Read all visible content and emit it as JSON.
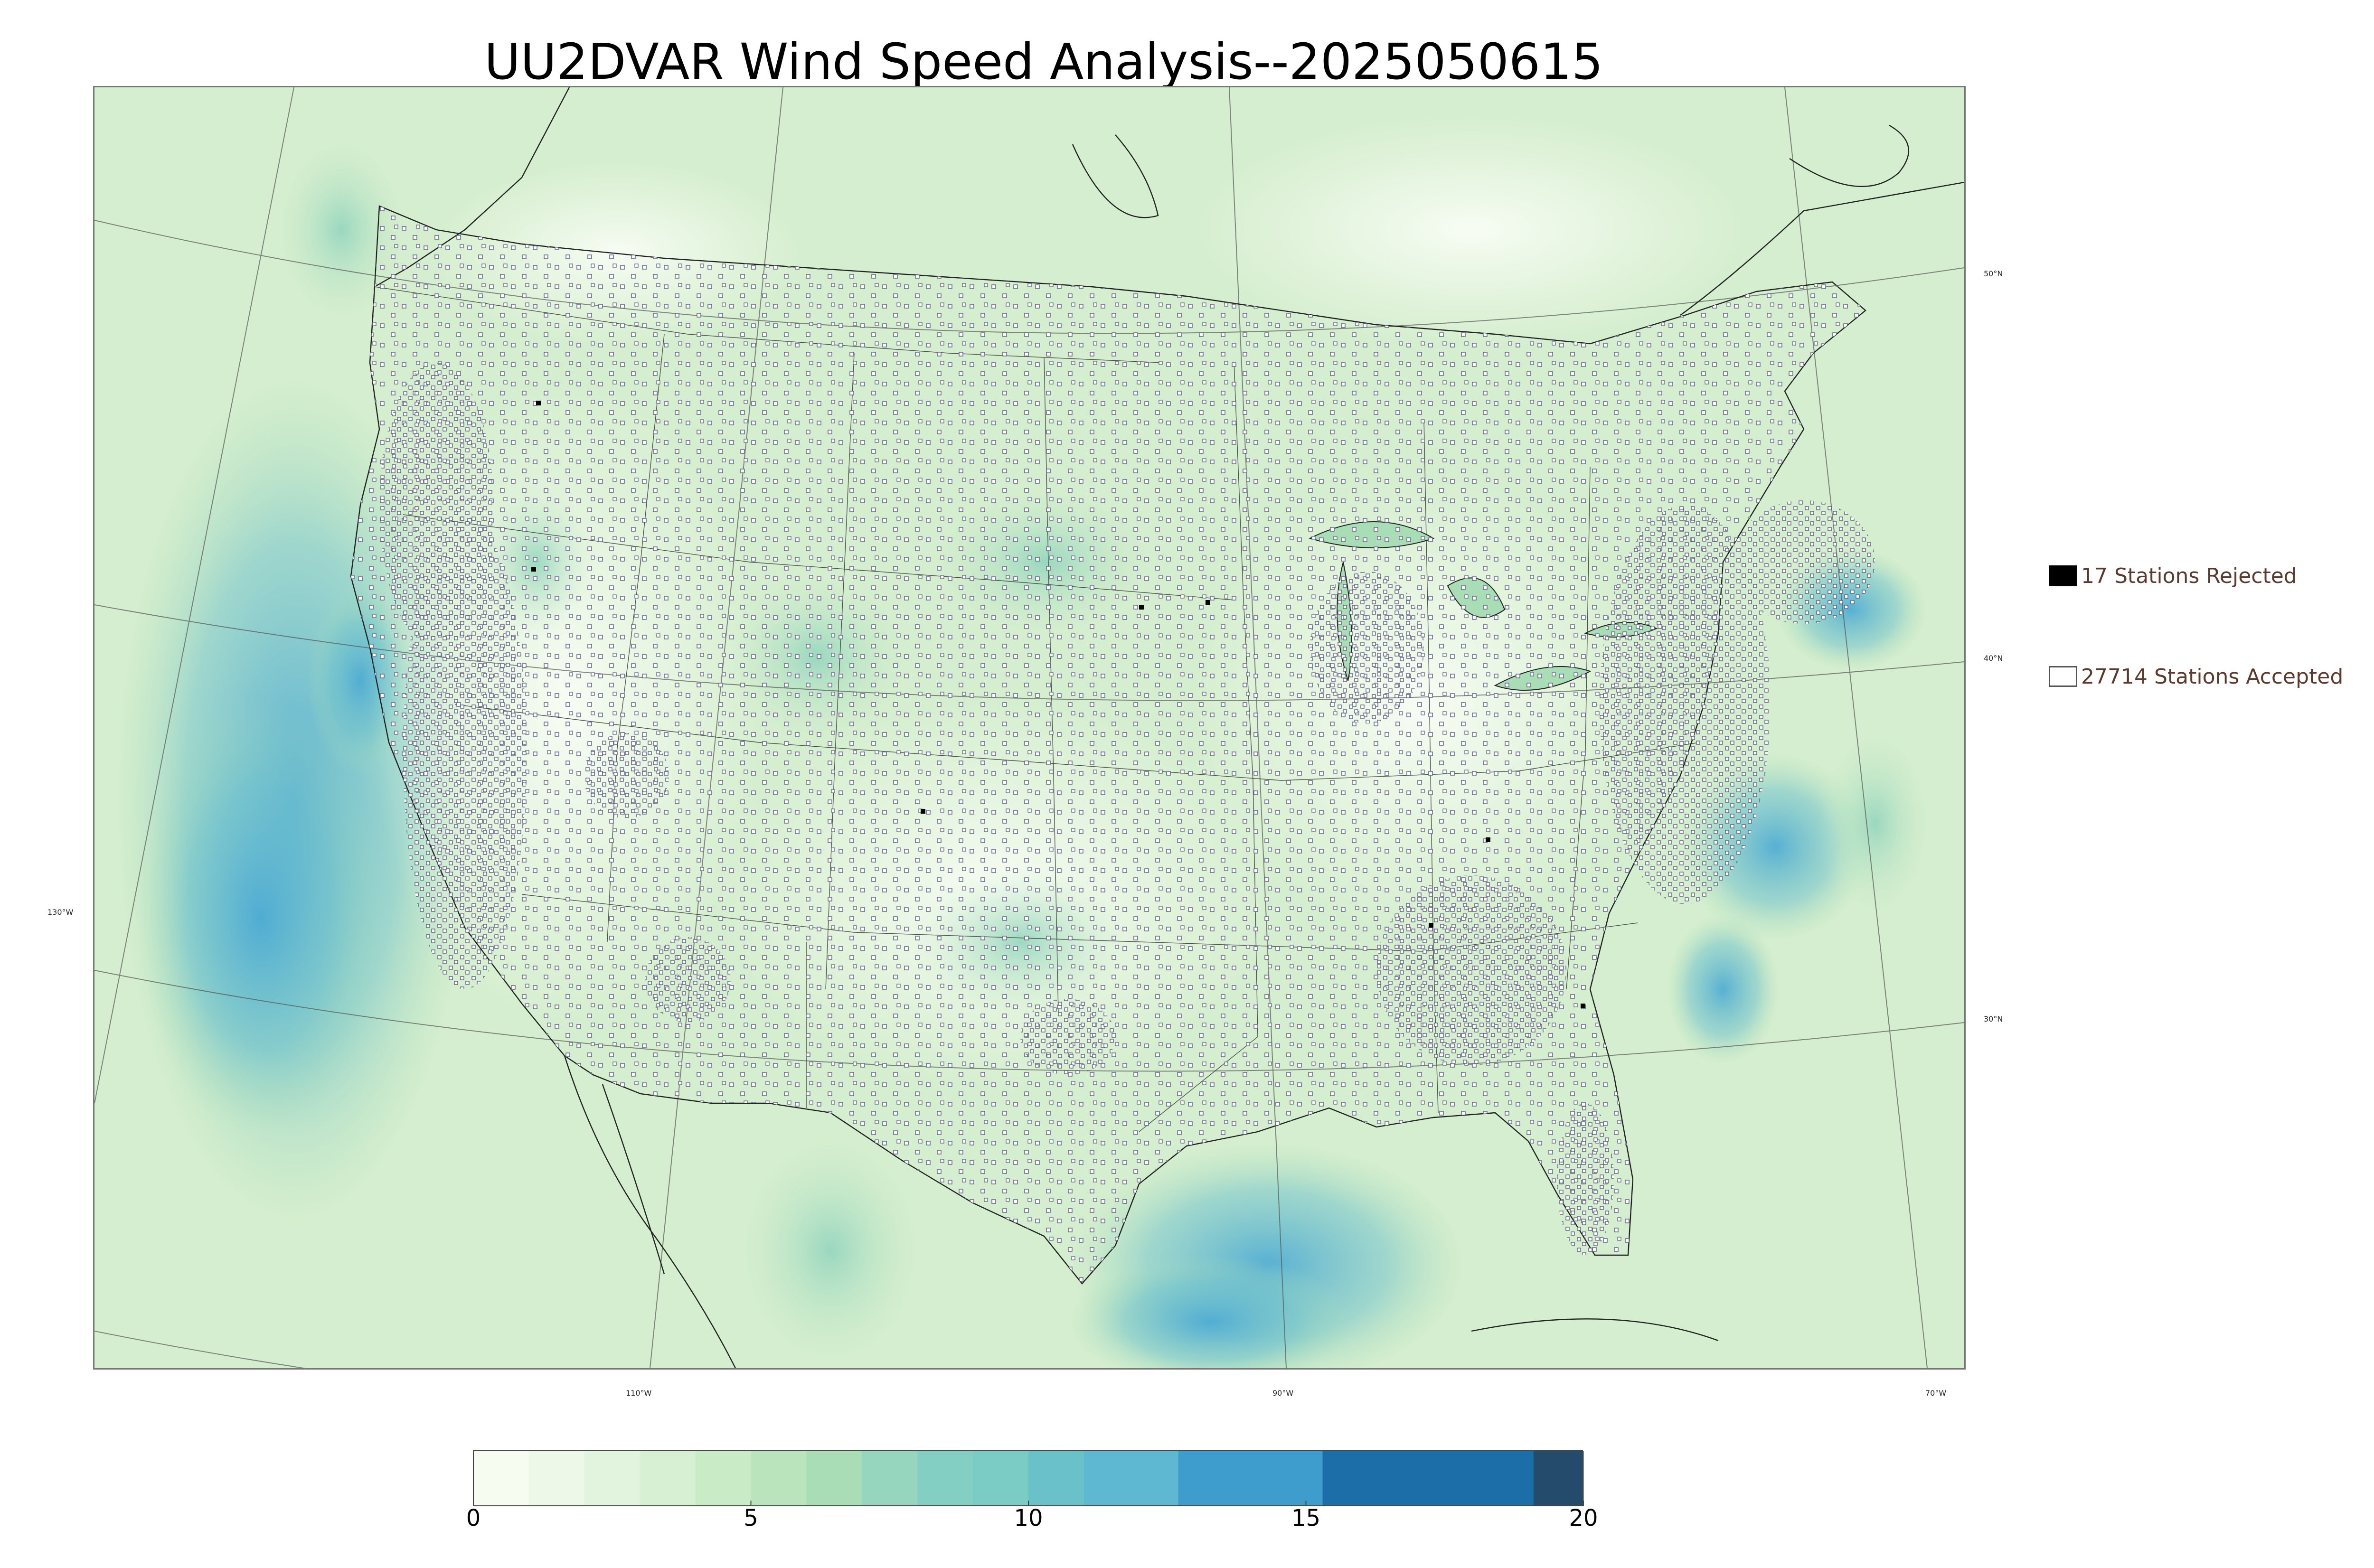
{
  "title": "UU2DVAR Wind Speed Analysis--2025050615",
  "map": {
    "latitude_labels": [
      "50°N",
      "40°N",
      "30°N"
    ],
    "longitude_labels": [
      "130°W",
      "110°W",
      "90°W",
      "70°W"
    ],
    "background_colors": {
      "water_calm": "#e6f5e0",
      "land": "#f2faee",
      "fast_wind": "#4eb3d3"
    }
  },
  "legend": {
    "rejected": {
      "count": 17,
      "label": "17 Stations Rejected",
      "color": "#000000"
    },
    "accepted": {
      "count": 27714,
      "label": "27714 Stations Accepted",
      "color": "#ffffff"
    }
  },
  "colorbar": {
    "min": 0,
    "max": 20,
    "ticks": [
      "0",
      "5",
      "10",
      "15",
      "20"
    ],
    "stops": [
      {
        "from": 0,
        "to": 1,
        "color": "#f7fcf0"
      },
      {
        "from": 1,
        "to": 2,
        "color": "#eef8e8"
      },
      {
        "from": 2,
        "to": 3,
        "color": "#e3f4de"
      },
      {
        "from": 3,
        "to": 4,
        "color": "#d7efd2"
      },
      {
        "from": 4,
        "to": 5,
        "color": "#c9ebc5"
      },
      {
        "from": 5,
        "to": 6,
        "color": "#b9e4bc"
      },
      {
        "from": 6,
        "to": 7,
        "color": "#a8ddb5"
      },
      {
        "from": 7,
        "to": 8,
        "color": "#96d6bf"
      },
      {
        "from": 8,
        "to": 9,
        "color": "#84cfc4"
      },
      {
        "from": 9,
        "to": 10,
        "color": "#7bccc4"
      },
      {
        "from": 10,
        "to": 11,
        "color": "#6bc1ca"
      },
      {
        "from": 11,
        "to": 12.7,
        "color": "#5fb8d2"
      },
      {
        "from": 12.7,
        "to": 15.3,
        "color": "#3e9dcc"
      },
      {
        "from": 15.3,
        "to": 19.1,
        "color": "#1b6ea8"
      },
      {
        "from": 19.1,
        "to": 20,
        "color": "#244b6c"
      }
    ]
  }
}
